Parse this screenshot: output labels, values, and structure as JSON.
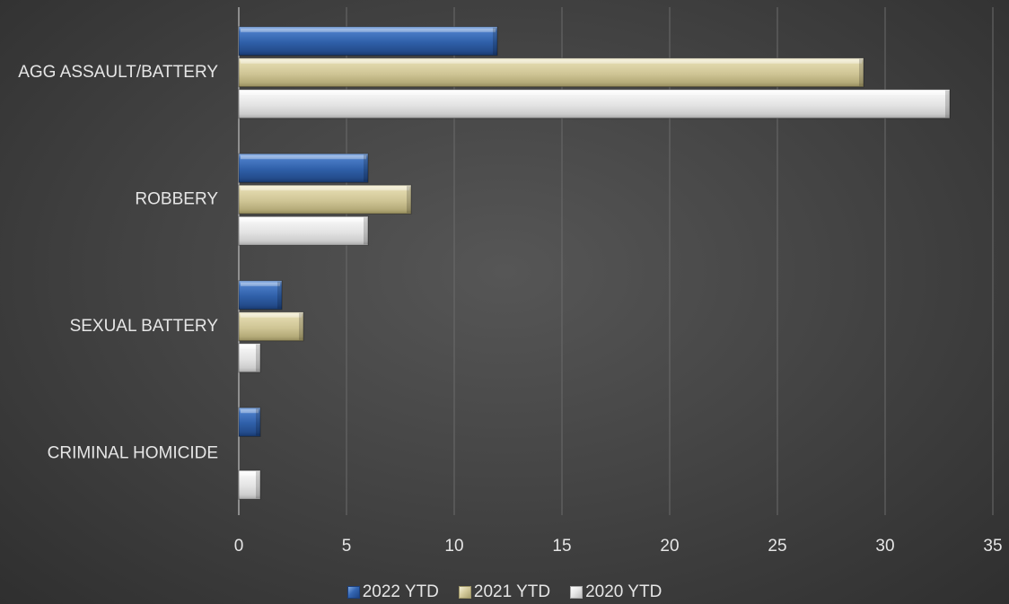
{
  "chart_data": {
    "type": "bar",
    "orientation": "horizontal",
    "categories": [
      "AGG ASSAULT/BATTERY",
      "ROBBERY",
      "SEXUAL BATTERY",
      "CRIMINAL HOMICIDE"
    ],
    "series": [
      {
        "name": "2022 YTD",
        "values": [
          12,
          6,
          2,
          1
        ],
        "color": "#2f5fa8"
      },
      {
        "name": "2021 YTD",
        "values": [
          29,
          8,
          3,
          0
        ],
        "color": "#cfc595"
      },
      {
        "name": "2020 YTD",
        "values": [
          33,
          6,
          1,
          1
        ],
        "color": "#e6e6e6"
      }
    ],
    "xlim": [
      0,
      35
    ],
    "xticks": [
      0,
      5,
      10,
      15,
      20,
      25,
      30,
      35
    ],
    "grid": true,
    "legend_position": "bottom",
    "background": "#454545"
  }
}
